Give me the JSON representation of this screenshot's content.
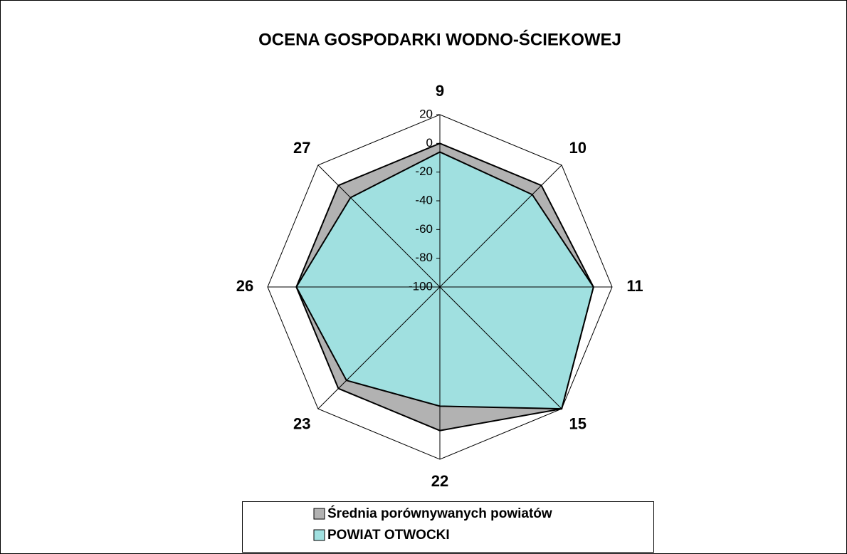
{
  "chart_data": {
    "type": "radar",
    "title": "OCENA GOSPODARKI WODNO-ŚCIEKOWEJ",
    "categories": [
      "9",
      "10",
      "11",
      "15",
      "22",
      "23",
      "26",
      "27"
    ],
    "series": [
      {
        "name": "Średnia porównywanych powiatów",
        "color": "#b2b2b2",
        "values": [
          0,
          0,
          7,
          20,
          0,
          0,
          0,
          0
        ]
      },
      {
        "name": "POWIAT OTWOCKI",
        "color": "#a0e0e0",
        "values": [
          -6,
          -9,
          7,
          20,
          -17,
          -8,
          0,
          -12
        ]
      }
    ],
    "ylim": [
      -100,
      20
    ],
    "yticks": [
      -100,
      -80,
      -60,
      -40,
      -20,
      0,
      20
    ]
  }
}
